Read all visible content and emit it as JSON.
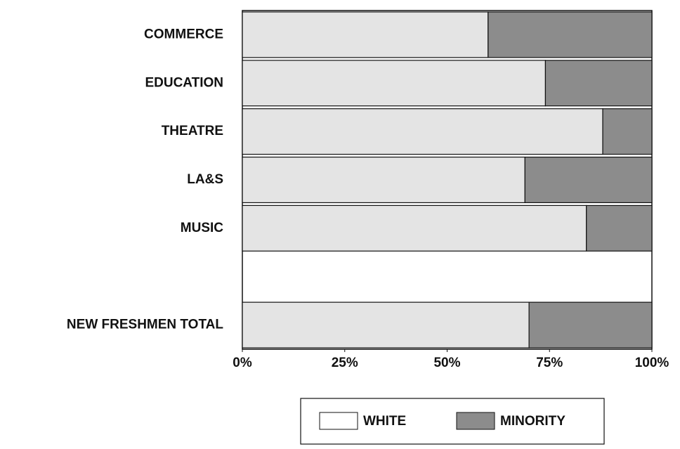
{
  "chart_data": {
    "type": "stacked_barh",
    "categories": [
      "COMMERCE",
      "EDUCATION",
      "THEATRE",
      "LA&S",
      "MUSIC",
      null,
      "NEW FRESHMEN TOTAL"
    ],
    "series": [
      {
        "name": "WHITE",
        "color": "#e4e4e4",
        "values": [
          60,
          74,
          88,
          69,
          84,
          null,
          70
        ]
      },
      {
        "name": "MINORITY",
        "color": "#8c8c8c",
        "values": [
          40,
          26,
          12,
          31,
          16,
          null,
          30
        ]
      }
    ],
    "xlim": [
      0,
      100
    ],
    "xticks": [
      {
        "value": 0,
        "label": "0%"
      },
      {
        "value": 25,
        "label": "25%"
      },
      {
        "value": 50,
        "label": "50%"
      },
      {
        "value": 75,
        "label": "75%"
      },
      {
        "value": 100,
        "label": "100%"
      }
    ],
    "legend": "bottom"
  }
}
